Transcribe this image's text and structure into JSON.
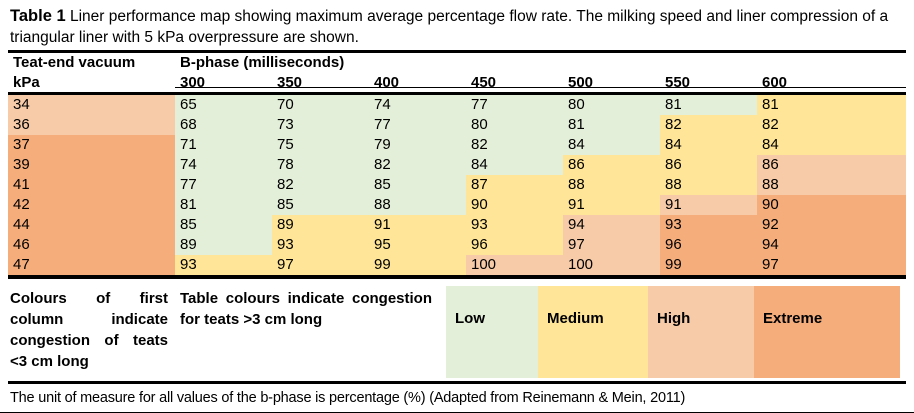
{
  "title": {
    "label": "Table 1",
    "text": " Liner performance map showing maximum average percentage flow rate. The milking speed and liner compression of a triangular liner with 5 kPa overpressure are shown."
  },
  "table": {
    "row_header_line1": "Teat-end vacuum",
    "row_header_line2": "kPa",
    "col_group_header": "B-phase (milliseconds)",
    "columns": [
      "300",
      "350",
      "400",
      "450",
      "500",
      "550",
      "600"
    ],
    "rows": [
      {
        "kpa": "34",
        "kpa_level": "high",
        "values": [
          "65",
          "70",
          "74",
          "77",
          "80",
          "81",
          "81"
        ],
        "levels": [
          "low",
          "low",
          "low",
          "low",
          "low",
          "low",
          "medium"
        ]
      },
      {
        "kpa": "36",
        "kpa_level": "high",
        "values": [
          "68",
          "73",
          "77",
          "80",
          "81",
          "82",
          "82"
        ],
        "levels": [
          "low",
          "low",
          "low",
          "low",
          "low",
          "medium",
          "medium"
        ]
      },
      {
        "kpa": "37",
        "kpa_level": "extreme",
        "values": [
          "71",
          "75",
          "79",
          "82",
          "84",
          "84",
          "84"
        ],
        "levels": [
          "low",
          "low",
          "low",
          "low",
          "low",
          "medium",
          "medium"
        ]
      },
      {
        "kpa": "39",
        "kpa_level": "extreme",
        "values": [
          "74",
          "78",
          "82",
          "84",
          "86",
          "86",
          "86"
        ],
        "levels": [
          "low",
          "low",
          "low",
          "low",
          "medium",
          "medium",
          "high"
        ]
      },
      {
        "kpa": "41",
        "kpa_level": "extreme",
        "values": [
          "77",
          "82",
          "85",
          "87",
          "88",
          "88",
          "88"
        ],
        "levels": [
          "low",
          "low",
          "low",
          "medium",
          "medium",
          "medium",
          "high"
        ]
      },
      {
        "kpa": "42",
        "kpa_level": "extreme",
        "values": [
          "81",
          "85",
          "88",
          "90",
          "91",
          "91",
          "90"
        ],
        "levels": [
          "low",
          "low",
          "low",
          "medium",
          "medium",
          "high",
          "extreme"
        ]
      },
      {
        "kpa": "44",
        "kpa_level": "extreme",
        "values": [
          "85",
          "89",
          "91",
          "93",
          "94",
          "93",
          "92"
        ],
        "levels": [
          "low",
          "medium",
          "medium",
          "medium",
          "high",
          "extreme",
          "extreme"
        ]
      },
      {
        "kpa": "46",
        "kpa_level": "extreme",
        "values": [
          "89",
          "93",
          "95",
          "96",
          "97",
          "96",
          "94"
        ],
        "levels": [
          "low",
          "medium",
          "medium",
          "medium",
          "high",
          "extreme",
          "extreme"
        ]
      },
      {
        "kpa": "47",
        "kpa_level": "extreme",
        "values": [
          "93",
          "97",
          "99",
          "100",
          "100",
          "99",
          "97"
        ],
        "levels": [
          "medium",
          "medium",
          "medium",
          "high",
          "high",
          "extreme",
          "extreme"
        ]
      }
    ]
  },
  "legend": {
    "first_column_note": "Colours of first column indicate congestion of teats <3 cm long",
    "table_note": "Table colours indicate congestion for teats >3 cm long",
    "levels": [
      {
        "label": "Low",
        "level": "low",
        "color": "#E3EFD9",
        "width": 92
      },
      {
        "label": "Medium",
        "level": "medium",
        "color": "#FFE597",
        "width": 110
      },
      {
        "label": "High",
        "level": "high",
        "color": "#F7CBA8",
        "width": 106
      },
      {
        "label": "Extreme",
        "level": "extreme",
        "color": "#F5AD7C",
        "width": 146
      }
    ]
  },
  "footnote": "The unit of measure for all values of the b-phase is percentage (%) (Adapted from Reinemann & Mein, 2011)",
  "colors": {
    "low": "#E3EFD9",
    "medium": "#FFE597",
    "high": "#F7CBA8",
    "extreme": "#F5AD7C"
  }
}
